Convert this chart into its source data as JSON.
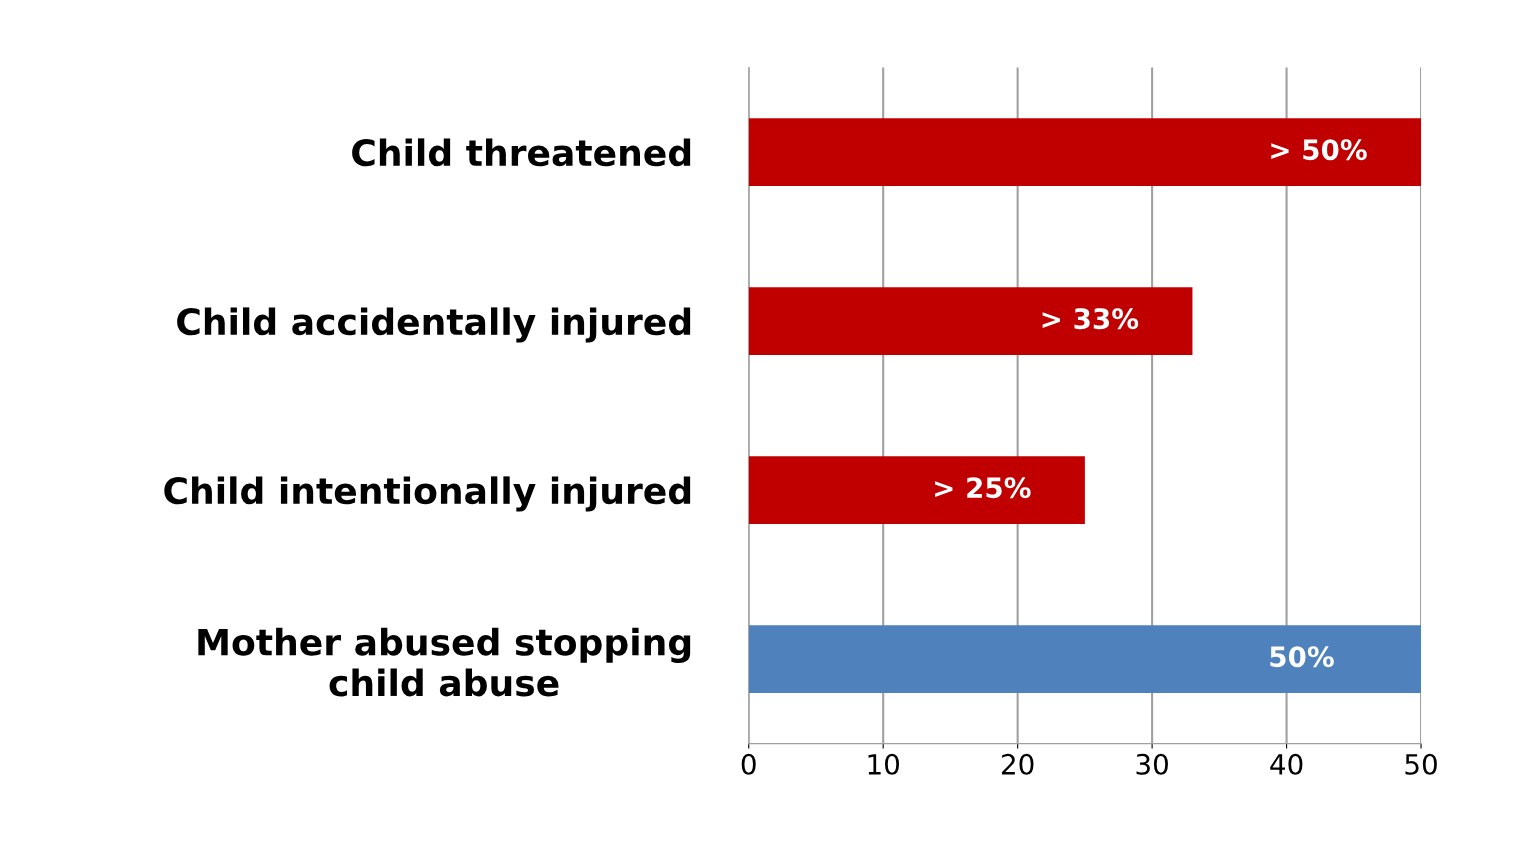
{
  "chart_data": {
    "type": "bar",
    "orientation": "horizontal",
    "categories": [
      "Child threatened",
      "Child accidentally injured",
      "Child intentionally injured",
      "Mother abused stopping\nchild abuse"
    ],
    "values": [
      50,
      33,
      25,
      50
    ],
    "colors": [
      "#c00000",
      "#c00000",
      "#c00000",
      "#4f81bd"
    ],
    "value_labels": [
      "> 50%",
      "> 33%",
      "> 25%",
      "50%"
    ],
    "xlim": [
      0,
      50
    ],
    "xticks": [
      0,
      10,
      20,
      30,
      40,
      50
    ],
    "grid": "x",
    "legend": false
  }
}
